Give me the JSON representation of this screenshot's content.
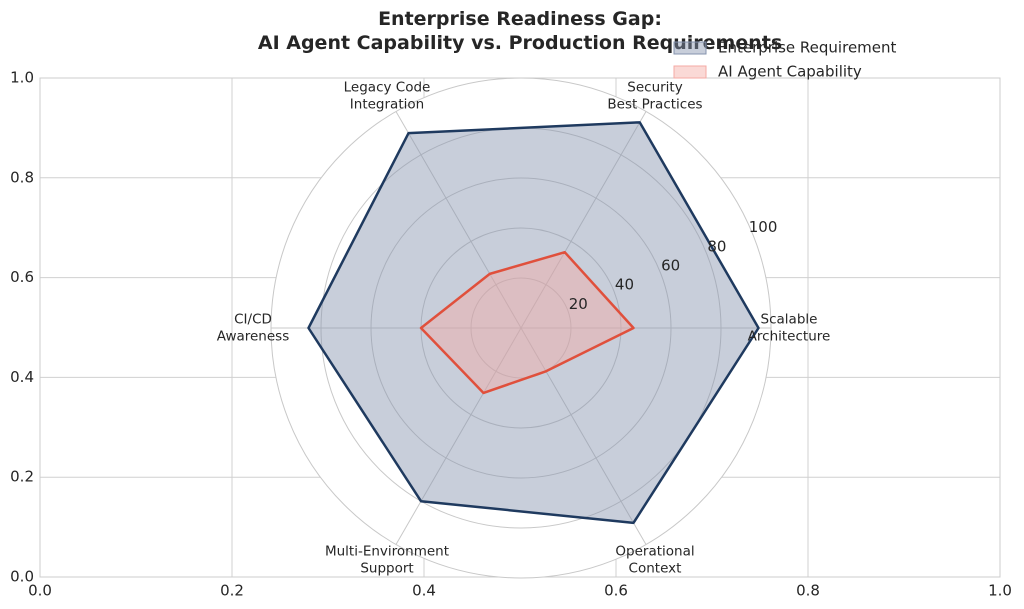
{
  "chart_data": {
    "type": "radar",
    "title": "Enterprise Readiness Gap:\nAI Agent Capability vs. Production Requirements",
    "categories": [
      "Scalable\nArchitecture",
      "Security\nBest Practices",
      "Legacy Code\nIntegration",
      "CI/CD\nAwareness",
      "Multi-Environment\nSupport",
      "Operational\nContext"
    ],
    "series": [
      {
        "name": "Enterprise Requirement",
        "color": "#1f3a5f",
        "fill": "#8593ad",
        "values": [
          95,
          95,
          90,
          85,
          80,
          90
        ]
      },
      {
        "name": "AI Agent Capability",
        "color": "#e0503c",
        "fill": "#f4aaa4",
        "values": [
          45,
          35,
          25,
          40,
          30,
          20
        ]
      }
    ],
    "rlim": [
      0,
      100
    ],
    "rticks": [
      20,
      40,
      60,
      80,
      100
    ],
    "xlim": [
      0,
      1
    ],
    "xticks": [
      {
        "value": 0,
        "label": "0.0"
      },
      {
        "value": 0.2,
        "label": "0.2"
      },
      {
        "value": 0.4,
        "label": "0.4"
      },
      {
        "value": 0.6,
        "label": "0.6"
      },
      {
        "value": 0.8,
        "label": "0.8"
      },
      {
        "value": 1,
        "label": "1.0"
      }
    ],
    "ylim": [
      0,
      1
    ],
    "yticks": [
      {
        "value": 0,
        "label": "0.0"
      },
      {
        "value": 0.2,
        "label": "0.2"
      },
      {
        "value": 0.4,
        "label": "0.4"
      },
      {
        "value": 0.6,
        "label": "0.6"
      },
      {
        "value": 0.8,
        "label": "0.8"
      },
      {
        "value": 1,
        "label": "1.0"
      }
    ],
    "grid": true,
    "legend": "upper right"
  }
}
